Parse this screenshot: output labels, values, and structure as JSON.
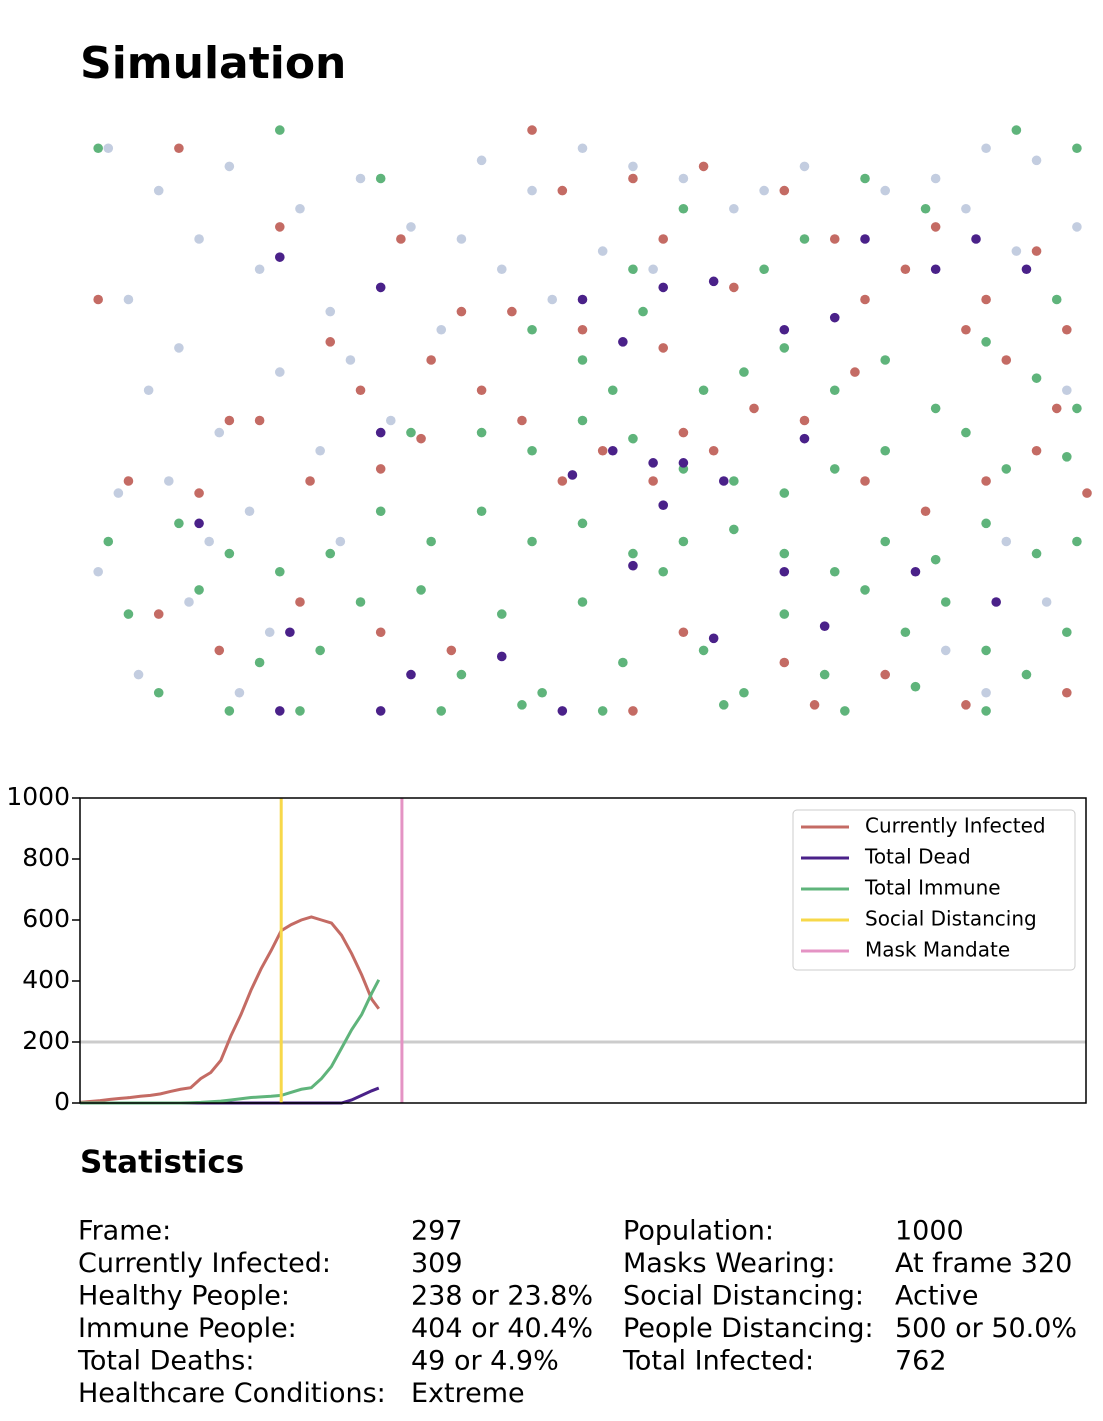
{
  "chart_data": [
    {
      "type": "scatter",
      "title": "Simulation",
      "xlim": [
        0,
        100
      ],
      "ylim": [
        0,
        100
      ],
      "series": [
        {
          "color": "#c3cde0",
          "x": [
            3,
            8,
            12,
            5,
            15,
            18,
            10,
            22,
            25,
            7,
            14,
            20,
            28,
            30,
            9,
            17,
            24,
            2,
            11,
            19,
            27,
            33,
            36,
            40,
            42,
            45,
            50,
            52,
            55,
            60,
            65,
            68,
            72,
            80,
            85,
            90,
            95,
            99,
            93,
            88,
            6,
            13,
            26,
            31,
            4,
            38,
            47,
            57,
            92,
            96,
            86,
            90,
            98,
            16
          ],
          "y": [
            95,
            88,
            80,
            70,
            92,
            75,
            62,
            85,
            68,
            55,
            48,
            58,
            90,
            72,
            40,
            35,
            45,
            25,
            20,
            15,
            60,
            82,
            65,
            93,
            75,
            88,
            95,
            78,
            92,
            90,
            85,
            88,
            92,
            88,
            90,
            95,
            93,
            82,
            78,
            85,
            8,
            30,
            30,
            50,
            38,
            80,
            70,
            75,
            30,
            20,
            12,
            5,
            55,
            5
          ]
        },
        {
          "color": "#c46b64",
          "x": [
            2,
            10,
            15,
            20,
            25,
            28,
            32,
            35,
            38,
            40,
            45,
            48,
            55,
            58,
            62,
            65,
            70,
            75,
            78,
            82,
            85,
            90,
            95,
            98,
            5,
            12,
            18,
            23,
            30,
            34,
            44,
            48,
            52,
            57,
            60,
            63,
            67,
            72,
            78,
            84,
            90,
            95,
            100,
            8,
            14,
            22,
            30,
            37,
            60,
            70,
            80,
            88,
            55,
            73,
            98,
            43,
            50,
            58,
            77,
            88,
            92,
            97
          ],
          "y": [
            70,
            95,
            50,
            82,
            63,
            55,
            80,
            60,
            68,
            55,
            98,
            88,
            90,
            80,
            92,
            72,
            88,
            80,
            70,
            75,
            82,
            70,
            78,
            65,
            40,
            38,
            50,
            40,
            42,
            47,
            50,
            40,
            45,
            40,
            48,
            45,
            52,
            50,
            40,
            35,
            40,
            45,
            38,
            18,
            12,
            20,
            15,
            12,
            15,
            10,
            8,
            3,
            2,
            3,
            5,
            68,
            65,
            62,
            58,
            65,
            60,
            52
          ]
        },
        {
          "color": "#5fb47b",
          "x": [
            2,
            20,
            30,
            55,
            60,
            68,
            72,
            78,
            84,
            93,
            99,
            97,
            45,
            50,
            53,
            56,
            62,
            66,
            70,
            75,
            80,
            85,
            90,
            95,
            99,
            33,
            40,
            45,
            50,
            55,
            60,
            65,
            70,
            75,
            80,
            88,
            92,
            98,
            10,
            15,
            20,
            25,
            30,
            35,
            40,
            45,
            50,
            55,
            60,
            65,
            70,
            75,
            80,
            85,
            90,
            95,
            99,
            5,
            12,
            18,
            24,
            28,
            34,
            38,
            42,
            46,
            50,
            54,
            58,
            62,
            66,
            70,
            74,
            78,
            82,
            86,
            90,
            94,
            98,
            8,
            15,
            22,
            36,
            44,
            52,
            64,
            76,
            83,
            90,
            3
          ],
          "y": [
            95,
            98,
            90,
            75,
            85,
            75,
            80,
            90,
            85,
            98,
            95,
            70,
            65,
            60,
            55,
            68,
            55,
            58,
            62,
            55,
            60,
            52,
            63,
            57,
            52,
            48,
            48,
            45,
            50,
            47,
            42,
            40,
            38,
            42,
            45,
            48,
            42,
            44,
            33,
            28,
            25,
            28,
            35,
            30,
            35,
            30,
            33,
            28,
            30,
            32,
            28,
            25,
            30,
            27,
            33,
            28,
            30,
            18,
            22,
            10,
            12,
            20,
            22,
            8,
            18,
            5,
            20,
            10,
            25,
            12,
            5,
            18,
            8,
            22,
            15,
            20,
            12,
            8,
            15,
            5,
            2,
            2,
            2,
            3,
            2,
            3,
            2,
            6,
            2,
            30
          ]
        },
        {
          "color": "#4a2189",
          "x": [
            20,
            30,
            50,
            54,
            58,
            63,
            70,
            75,
            78,
            85,
            89,
            94,
            30,
            49,
            53,
            57,
            60,
            64,
            58,
            72,
            12,
            21,
            42,
            55,
            63,
            70,
            74,
            83,
            91,
            33,
            48,
            20,
            30
          ],
          "y": [
            77,
            72,
            70,
            63,
            72,
            73,
            65,
            67,
            80,
            75,
            80,
            75,
            48,
            41,
            45,
            43,
            43,
            40,
            36,
            47,
            33,
            15,
            11,
            26,
            14,
            25,
            16,
            25,
            20,
            8,
            2,
            2,
            2
          ]
        }
      ]
    },
    {
      "type": "line",
      "xlim": [
        0,
        1000
      ],
      "ylim": [
        0,
        1000
      ],
      "yticks": [
        0,
        200,
        400,
        600,
        800,
        1000
      ],
      "x": [
        0,
        10,
        20,
        30,
        40,
        50,
        60,
        70,
        80,
        90,
        100,
        110,
        120,
        130,
        140,
        150,
        160,
        170,
        180,
        190,
        200,
        210,
        220,
        230,
        240,
        250,
        260,
        270,
        280,
        290,
        297
      ],
      "series": [
        {
          "name": "Currently Infected",
          "color": "#c46b64",
          "values": [
            2,
            5,
            8,
            12,
            15,
            18,
            22,
            25,
            30,
            38,
            45,
            50,
            80,
            100,
            140,
            220,
            290,
            370,
            440,
            500,
            565,
            585,
            600,
            610,
            600,
            590,
            550,
            490,
            420,
            340,
            309
          ]
        },
        {
          "name": "Total Dead",
          "color": "#4a2189",
          "values": [
            0,
            0,
            0,
            0,
            0,
            0,
            0,
            0,
            0,
            0,
            0,
            0,
            0,
            0,
            0,
            0,
            0,
            0,
            0,
            0,
            0,
            0,
            0,
            0,
            0,
            0,
            0,
            10,
            25,
            40,
            49
          ]
        },
        {
          "name": "Total Immune",
          "color": "#5fb47b",
          "values": [
            0,
            0,
            0,
            0,
            0,
            0,
            0,
            0,
            0,
            0,
            0,
            1,
            2,
            4,
            6,
            10,
            14,
            18,
            20,
            22,
            25,
            35,
            45,
            50,
            80,
            120,
            180,
            240,
            290,
            360,
            404
          ]
        }
      ],
      "vlines": [
        {
          "name": "Social Distancing",
          "color": "#f7d84a",
          "x": 200
        },
        {
          "name": "Mask Mandate",
          "color": "#e493c4",
          "x": 320
        }
      ],
      "hlines": [
        {
          "color": "#cccccc",
          "y": 200
        }
      ],
      "legend": "upper right"
    }
  ],
  "statistics": {
    "title": "Statistics",
    "left": [
      [
        "Frame:",
        "297"
      ],
      [
        "Currently Infected:",
        "309"
      ],
      [
        "Healthy People:",
        "238 or 23.8%"
      ],
      [
        "Immune People:",
        "404 or 40.4%"
      ],
      [
        "Total Deaths:",
        "49 or 4.9%"
      ],
      [
        "Healthcare Conditions:",
        "Extreme"
      ]
    ],
    "right": [
      [
        "Population:",
        "1000"
      ],
      [
        "Masks Wearing:",
        "At frame 320"
      ],
      [
        "Social Distancing:",
        "Active"
      ],
      [
        "People Distancing:",
        "500 or 50.0%"
      ],
      [
        "Total Infected:",
        "762"
      ]
    ]
  }
}
